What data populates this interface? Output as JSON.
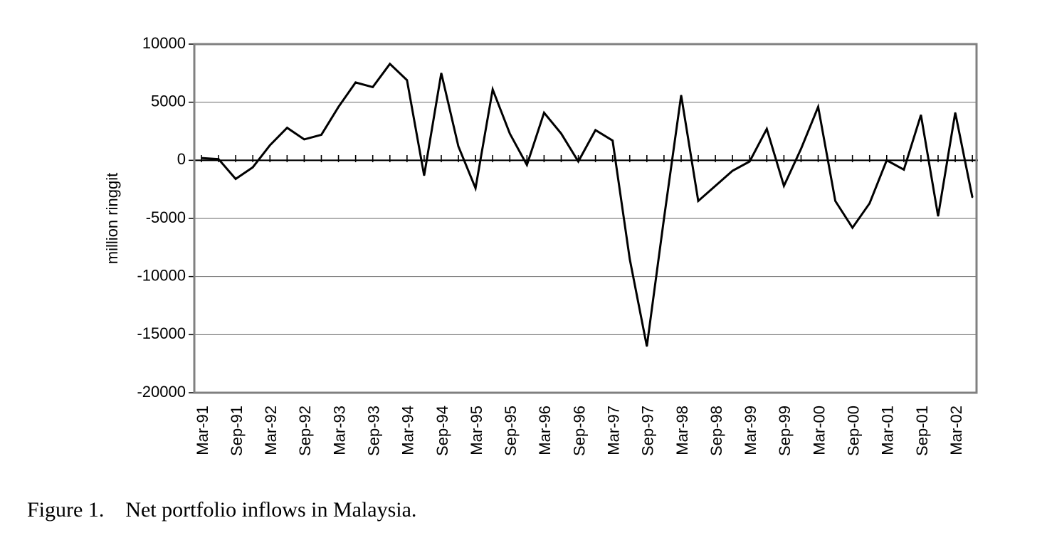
{
  "caption": "Figure 1.    Net portfolio inflows in Malaysia.",
  "chart_data": {
    "type": "line",
    "title": "",
    "xlabel": "",
    "ylabel": "million ringgit",
    "ylim": [
      -20000,
      10000
    ],
    "yticks": [
      10000,
      5000,
      0,
      -5000,
      -10000,
      -15000,
      -20000
    ],
    "grid": "horizontal",
    "legend": "none",
    "x_tick_labels": [
      "Mar-91",
      "Sep-91",
      "Mar-92",
      "Sep-92",
      "Mar-93",
      "Sep-93",
      "Mar-94",
      "Sep-94",
      "Mar-95",
      "Sep-95",
      "Mar-96",
      "Sep-96",
      "Mar-97",
      "Sep-97",
      "Mar-98",
      "Sep-98",
      "Mar-99",
      "Sep-99",
      "Mar-00",
      "Sep-00",
      "Mar-01",
      "Sep-01",
      "Mar-02"
    ],
    "x": [
      "Mar-91",
      "Jun-91",
      "Sep-91",
      "Dec-91",
      "Mar-92",
      "Jun-92",
      "Sep-92",
      "Dec-92",
      "Mar-93",
      "Jun-93",
      "Sep-93",
      "Dec-93",
      "Mar-94",
      "Jun-94",
      "Sep-94",
      "Dec-94",
      "Mar-95",
      "Jun-95",
      "Sep-95",
      "Dec-95",
      "Mar-96",
      "Jun-96",
      "Sep-96",
      "Dec-96",
      "Mar-97",
      "Jun-97",
      "Sep-97",
      "Dec-97",
      "Mar-98",
      "Jun-98",
      "Sep-98",
      "Dec-98",
      "Mar-99",
      "Jun-99",
      "Sep-99",
      "Dec-99",
      "Mar-00",
      "Jun-00",
      "Sep-00",
      "Dec-00",
      "Mar-01",
      "Jun-01",
      "Sep-01",
      "Dec-01",
      "Mar-02",
      "Jun-02"
    ],
    "series": [
      {
        "color": "#000000",
        "values": [
          200,
          100,
          -1600,
          -600,
          1300,
          2800,
          1800,
          2200,
          4600,
          6700,
          6300,
          8300,
          6900,
          -1300,
          7500,
          1200,
          -2400,
          6100,
          2300,
          -400,
          4100,
          2300,
          -100,
          2600,
          1700,
          -8500,
          -16000,
          -5000,
          5600,
          -3500,
          -2200,
          -900,
          -100,
          2700,
          -2200,
          1000,
          4600,
          -3500,
          -5800,
          -3700,
          0,
          -800,
          3900,
          -4800,
          4100,
          -3200
        ]
      }
    ]
  }
}
